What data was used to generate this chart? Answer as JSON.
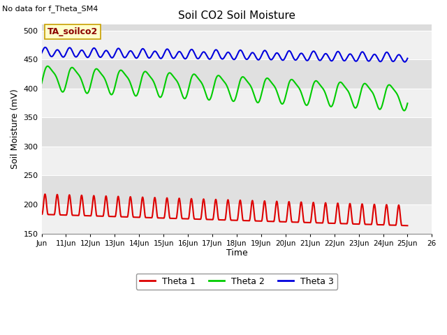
{
  "title": "Soil CO2 Soil Moisture",
  "subtitle": "No data for f_Theta_SM4",
  "ylabel": "Soil Moisture (mV)",
  "xlabel": "Time",
  "annotation": "TA_soilco2",
  "ylim": [
    150,
    510
  ],
  "yticks": [
    150,
    200,
    250,
    300,
    350,
    400,
    450,
    500
  ],
  "xtick_labels": [
    "Jun",
    "11Jun",
    "12Jun",
    "13Jun",
    "14Jun",
    "15Jun",
    "16Jun",
    "17Jun",
    "18Jun",
    "19Jun",
    "20Jun",
    "21Jun",
    "22Jun",
    "23Jun",
    "24Jun",
    "25Jun",
    "26"
  ],
  "bg_color": "#ffffff",
  "plot_bg_color": "#dcdcdc",
  "band_color_light": "#f0f0f0",
  "theta1_color": "#dd0000",
  "theta2_color": "#00cc00",
  "theta3_color": "#0000dd",
  "line_width": 1.5,
  "legend_labels": [
    "Theta 1",
    "Theta 2",
    "Theta 3"
  ]
}
